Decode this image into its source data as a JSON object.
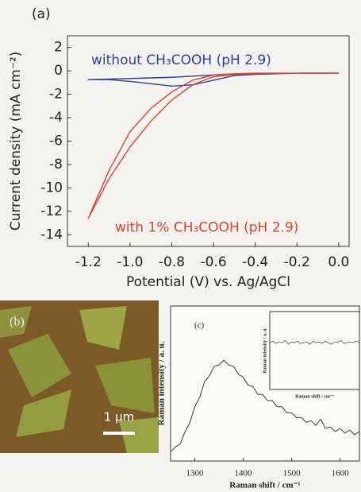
{
  "chart_data": [
    {
      "type": "line",
      "panel_label": "(a)",
      "x_label": "Potential (V) vs. Ag/AgCl",
      "y_label": "Current density (mA cm⁻²)",
      "x": [
        0,
        -0.2,
        -0.4,
        -0.5,
        -0.6,
        -0.7,
        -0.8,
        -0.9,
        -1.0,
        -1.1,
        -1.2,
        -1.1,
        -1.0,
        -0.9,
        -0.8,
        -0.7,
        -0.6,
        -0.5,
        -0.4,
        -0.2,
        0
      ],
      "series": [
        {
          "name": "without CH₃COOH (pH 2.9)",
          "color": "#2b3f9c",
          "values": [
            -0.2,
            -0.2,
            -0.25,
            -0.3,
            -0.35,
            -0.45,
            -0.55,
            -0.6,
            -0.65,
            -0.7,
            -0.75,
            -0.75,
            -0.9,
            -1.1,
            -1.3,
            -1.2,
            -0.8,
            -0.4,
            -0.3,
            -0.2,
            -0.2
          ]
        },
        {
          "name": "with 1% CH₃COOH (pH 2.9)",
          "color": "#d9412f",
          "values": [
            -0.2,
            -0.2,
            -0.25,
            -0.3,
            -0.5,
            -1.2,
            -2.5,
            -4.3,
            -6.5,
            -9.2,
            -12.6,
            -8.5,
            -5.2,
            -3.2,
            -1.8,
            -0.8,
            -0.35,
            -0.25,
            -0.2,
            -0.2,
            -0.2
          ]
        }
      ],
      "xlim": [
        -1.3,
        0.05
      ],
      "ylim": [
        -15,
        3
      ],
      "xticks": [
        -1.2,
        {
          "value": -1,
          "label": "-1.0"
        },
        -0.8,
        -0.6,
        -0.4,
        -0.2,
        {
          "value": 0,
          "label": "0.0"
        }
      ],
      "yticks": [
        2,
        0,
        -2,
        -4,
        -6,
        -8,
        -10,
        -12,
        -14
      ]
    },
    {
      "type": "line",
      "panel_label": "(c)",
      "x_label": "Raman shift / cm⁻¹",
      "y_label": "Raman intensity / a. u.",
      "x": [
        1250,
        1260,
        1270,
        1280,
        1290,
        1300,
        1310,
        1320,
        1330,
        1340,
        1350,
        1360,
        1370,
        1380,
        1390,
        1400,
        1410,
        1420,
        1430,
        1440,
        1450,
        1460,
        1470,
        1480,
        1490,
        1500,
        1510,
        1520,
        1530,
        1540,
        1550,
        1560,
        1570,
        1580,
        1590,
        1600,
        1610,
        1620,
        1630,
        1640
      ],
      "series": [
        {
          "color": "#2f3d3b",
          "values": [
            0.06,
            0.09,
            0.11,
            0.19,
            0.25,
            0.35,
            0.41,
            0.51,
            0.55,
            0.61,
            0.62,
            0.65,
            0.62,
            0.61,
            0.56,
            0.54,
            0.49,
            0.48,
            0.43,
            0.43,
            0.39,
            0.39,
            0.35,
            0.35,
            0.31,
            0.31,
            0.28,
            0.28,
            0.25,
            0.26,
            0.23,
            0.27,
            0.21,
            0.22,
            0.19,
            0.21,
            0.18,
            0.2,
            0.17,
            0.19
          ]
        }
      ],
      "xlim": [
        1250,
        1640
      ],
      "ylim": [
        0,
        1
      ],
      "xticks": [
        1300,
        1400,
        1500,
        1600
      ]
    },
    {
      "type": "line",
      "x_label": "Raman shift / cm⁻¹",
      "y_label": "Raman intensity / a. u.",
      "series": [
        {
          "color": "#2f3d3b",
          "values": [
            0.6,
            0.62,
            0.59,
            0.61,
            0.6,
            0.63,
            0.58,
            0.61,
            0.6,
            0.62,
            0.59,
            0.6,
            0.61,
            0.58,
            0.62,
            0.6,
            0.61,
            0.59,
            0.62,
            0.6,
            0.58,
            0.61,
            0.6,
            0.63,
            0.59,
            0.6,
            0.61,
            0.6,
            0.62,
            0.6
          ]
        }
      ],
      "ylim": [
        0,
        1
      ]
    }
  ],
  "image": {
    "panel_label": "(b)",
    "scale_bar": "1 μm"
  }
}
